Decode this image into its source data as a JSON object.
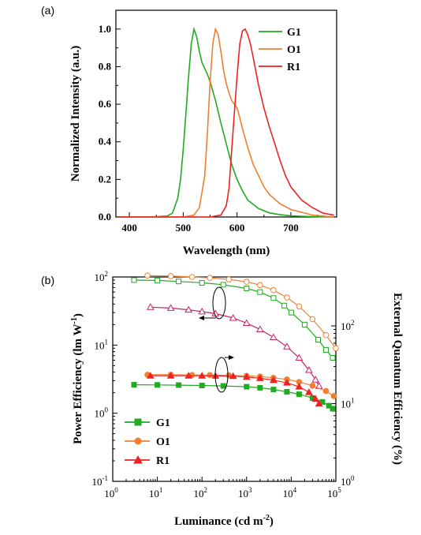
{
  "chart_data": [
    {
      "panel": "(a)",
      "type": "line",
      "xlabel": "Wavelength (nm)",
      "ylabel": "Normalized Intensity (a.u.)",
      "xlim": [
        375,
        785
      ],
      "ylim": [
        0,
        1.1
      ],
      "xticks": [
        "400",
        "500",
        "600",
        "700"
      ],
      "yticks": [
        "0.0",
        "0.2",
        "0.4",
        "0.6",
        "0.8",
        "1.0"
      ],
      "legend_position": "top-right",
      "series": [
        {
          "name": "G1",
          "color": "#22aa22",
          "x": [
            380,
            440,
            470,
            480,
            490,
            495,
            500,
            505,
            510,
            515,
            520,
            525,
            530,
            535,
            540,
            545,
            550,
            560,
            570,
            580,
            590,
            600,
            610,
            620,
            640,
            660,
            680,
            700,
            740,
            780
          ],
          "y": [
            0.0,
            0.0,
            0.005,
            0.02,
            0.1,
            0.2,
            0.36,
            0.55,
            0.75,
            0.92,
            1.0,
            0.96,
            0.88,
            0.82,
            0.79,
            0.76,
            0.72,
            0.62,
            0.5,
            0.39,
            0.28,
            0.2,
            0.14,
            0.09,
            0.045,
            0.022,
            0.012,
            0.006,
            0.002,
            0.0
          ]
        },
        {
          "name": "O1",
          "color": "#f07f30",
          "x": [
            380,
            500,
            520,
            530,
            540,
            545,
            550,
            555,
            560,
            565,
            570,
            575,
            580,
            585,
            590,
            595,
            600,
            605,
            610,
            620,
            630,
            640,
            650,
            660,
            680,
            700,
            720,
            740,
            780
          ],
          "y": [
            0.0,
            0.0,
            0.01,
            0.05,
            0.22,
            0.45,
            0.72,
            0.92,
            1.0,
            0.97,
            0.88,
            0.78,
            0.71,
            0.66,
            0.62,
            0.6,
            0.58,
            0.53,
            0.47,
            0.37,
            0.28,
            0.22,
            0.16,
            0.12,
            0.07,
            0.04,
            0.025,
            0.01,
            0.0
          ]
        },
        {
          "name": "R1",
          "color": "#ee2222",
          "x": [
            380,
            550,
            570,
            580,
            585,
            590,
            595,
            600,
            605,
            610,
            615,
            620,
            625,
            630,
            640,
            650,
            660,
            670,
            680,
            690,
            700,
            720,
            740,
            760,
            780
          ],
          "y": [
            0.0,
            0.0,
            0.01,
            0.06,
            0.15,
            0.35,
            0.55,
            0.75,
            0.92,
            0.99,
            1.0,
            0.97,
            0.92,
            0.85,
            0.7,
            0.58,
            0.48,
            0.39,
            0.3,
            0.22,
            0.16,
            0.09,
            0.05,
            0.02,
            0.01
          ]
        }
      ]
    },
    {
      "panel": "(b)",
      "type": "scatter",
      "xlabel": "Luminance (cd m",
      "xlabel_sup": "-2",
      "xlabel_end": ")",
      "ylabel": "Power Efficiency (lm W",
      "ylabel_sup": "-1",
      "ylabel_end": ")",
      "y2label": "External Quantum Efficiency (%)",
      "xscale": "log",
      "yscale": "log",
      "xlim": [
        1,
        100000
      ],
      "ylim": [
        0.1,
        100
      ],
      "x_tick_base": "10",
      "x_tick_exps": [
        "0",
        "1",
        "2",
        "3",
        "4",
        "5"
      ],
      "y_tick_base": "10",
      "y_tick_exps": [
        "-1",
        "0",
        "1",
        "2"
      ],
      "y2_tick_base": "10",
      "y2_tick_exps": [
        "0",
        "1",
        "2"
      ],
      "legend_position": "bottom-left",
      "legend": [
        "G1",
        "O1",
        "R1"
      ],
      "series": [
        {
          "name": "G1",
          "quantity": "power efficiency",
          "color": "#22aa22",
          "marker": "square",
          "filled": false,
          "x": [
            3,
            10,
            30,
            100,
            300,
            1000,
            2000,
            4000,
            7000,
            10000,
            20000,
            40000,
            60000,
            85000
          ],
          "y": [
            90,
            89,
            86,
            82,
            77,
            68,
            60,
            49,
            38,
            30,
            20,
            12,
            8.5,
            6.5
          ]
        },
        {
          "name": "O1",
          "quantity": "power efficiency",
          "color": "#f07f30",
          "marker": "circle",
          "filled": false,
          "x": [
            6,
            20,
            60,
            150,
            400,
            1000,
            2000,
            4000,
            8000,
            15000,
            30000,
            60000,
            100000
          ],
          "y": [
            105,
            103,
            100,
            97,
            92,
            85,
            76,
            64,
            50,
            37,
            24,
            14,
            9
          ]
        },
        {
          "name": "R1",
          "quantity": "power efficiency",
          "color": "#cc2266",
          "marker": "triangle",
          "filled": false,
          "x": [
            7,
            20,
            50,
            100,
            200,
            500,
            1000,
            2000,
            4000,
            8000,
            15000,
            25000,
            35000,
            42000
          ],
          "y": [
            36,
            35,
            33,
            31,
            29,
            25,
            21,
            17,
            13,
            9.5,
            6.5,
            4.3,
            3.1,
            2.5
          ]
        },
        {
          "name": "G1",
          "quantity": "EQE",
          "color": "#22aa22",
          "marker": "square",
          "filled": true,
          "x": [
            3,
            10,
            30,
            100,
            300,
            1000,
            2000,
            4000,
            8000,
            15000,
            30000,
            50000,
            70000,
            85000
          ],
          "y": [
            17.5,
            17.4,
            17.3,
            17.1,
            16.9,
            16.5,
            16,
            15.2,
            14.2,
            13.2,
            11.8,
            10.5,
            9.4,
            8.6
          ]
        },
        {
          "name": "O1",
          "quantity": "EQE",
          "color": "#f07f30",
          "marker": "circle",
          "filled": true,
          "x": [
            6,
            20,
            60,
            150,
            400,
            1000,
            2000,
            4000,
            8000,
            15000,
            30000,
            60000,
            90000
          ],
          "y": [
            23.5,
            23.5,
            23.4,
            23.3,
            23.1,
            22.8,
            22.3,
            21.5,
            20.5,
            19,
            17,
            14.5,
            12.5
          ]
        },
        {
          "name": "R1",
          "quantity": "EQE",
          "color": "#ee2222",
          "marker": "triangle",
          "filled": true,
          "x": [
            7,
            20,
            50,
            100,
            200,
            500,
            1000,
            2000,
            4000,
            8000,
            15000,
            25000,
            35000,
            42000
          ],
          "y": [
            22.8,
            22.8,
            22.8,
            22.8,
            22.7,
            22.5,
            22,
            21.2,
            20,
            18.5,
            16.5,
            14,
            11.5,
            10
          ]
        }
      ]
    }
  ]
}
